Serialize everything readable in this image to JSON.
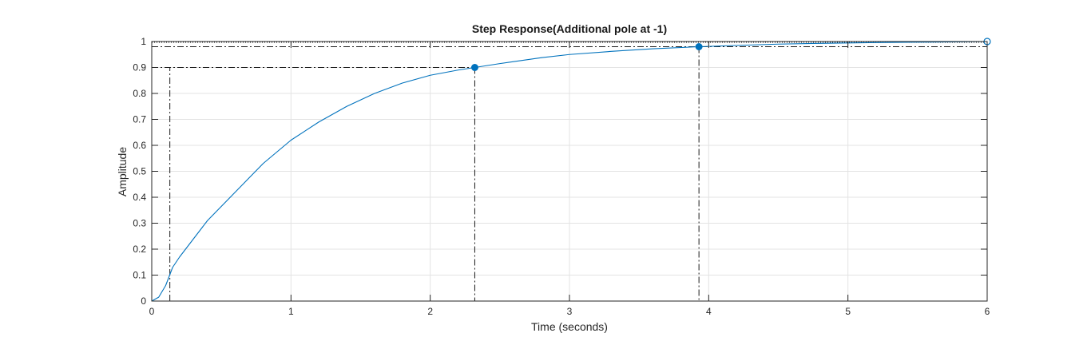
{
  "chart_data": {
    "type": "line",
    "title": "Step Response(Additional pole at -1)",
    "xlabel": "Time (seconds)",
    "ylabel": "Amplitude",
    "xlim": [
      0,
      6
    ],
    "ylim": [
      0,
      1
    ],
    "xticks": [
      0,
      1,
      2,
      3,
      4,
      5,
      6
    ],
    "yticks": [
      0,
      0.1,
      0.2,
      0.3,
      0.4,
      0.5,
      0.6,
      0.7,
      0.8,
      0.9,
      1
    ],
    "ytick_labels": [
      "0",
      "0.1",
      "0.2",
      "0.3",
      "0.4",
      "0.5",
      "0.6",
      "0.7",
      "0.8",
      "0.9",
      "1"
    ],
    "grid": true,
    "legend": "none",
    "series": [
      {
        "color": "#0072bd",
        "x": [
          0,
          0.05,
          0.1,
          0.15,
          0.2,
          0.3,
          0.4,
          0.5,
          0.6,
          0.8,
          1.0,
          1.2,
          1.4,
          1.6,
          1.8,
          2.0,
          2.2,
          2.32,
          2.5,
          2.8,
          3.0,
          3.3,
          3.6,
          3.93,
          4.2,
          4.5,
          4.8,
          5.2,
          5.6,
          6.0
        ],
        "y": [
          0,
          0.015,
          0.06,
          0.13,
          0.17,
          0.24,
          0.31,
          0.365,
          0.42,
          0.53,
          0.62,
          0.69,
          0.75,
          0.8,
          0.84,
          0.87,
          0.89,
          0.9,
          0.915,
          0.938,
          0.95,
          0.962,
          0.972,
          0.98,
          0.985,
          0.99,
          0.993,
          0.996,
          0.998,
          1.0
        ]
      }
    ],
    "characteristics": {
      "rise_start": {
        "x": 0.13,
        "y": 0.1
      },
      "rise_end": {
        "x": 2.32,
        "y": 0.9
      },
      "settling": {
        "x": 3.93,
        "y": 0.98
      },
      "final_value": {
        "x": 6.0,
        "y": 1.0
      }
    },
    "colors": {
      "line": "#0072bd",
      "grid": "#e3e3e3",
      "axes": "#262626",
      "marker_lines": "#1a1a1a"
    }
  }
}
